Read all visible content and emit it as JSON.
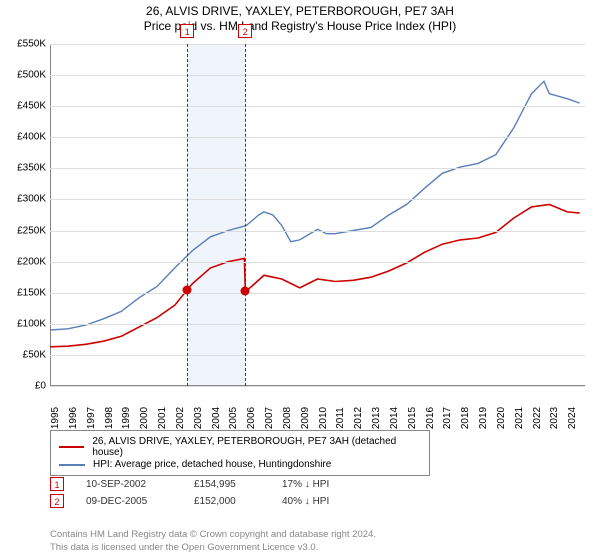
{
  "title_line1": "26, ALVIS DRIVE, YAXLEY, PETERBOROUGH, PE7 3AH",
  "title_line2": "Price paid vs. HM Land Registry's House Price Index (HPI)",
  "chart": {
    "type": "line",
    "background_color": "#ffffff",
    "grid_color": "#dddddd",
    "axis_color": "#888888",
    "highlight_band_color": "#f0f4fb",
    "marker_line_color": "#cc0000",
    "marker_dot_color": "#cc0000",
    "x_years": [
      1995,
      1996,
      1997,
      1998,
      1999,
      2000,
      2001,
      2002,
      2003,
      2004,
      2005,
      2006,
      2007,
      2008,
      2009,
      2010,
      2011,
      2012,
      2013,
      2014,
      2015,
      2016,
      2017,
      2018,
      2019,
      2020,
      2021,
      2022,
      2023,
      2024
    ],
    "x_min": 1995,
    "x_max": 2025,
    "y_min": 0,
    "y_max": 550000,
    "y_ticks": [
      0,
      50000,
      100000,
      150000,
      200000,
      250000,
      300000,
      350000,
      400000,
      450000,
      500000,
      550000
    ],
    "y_tick_labels": [
      "£0",
      "£50K",
      "£100K",
      "£150K",
      "£200K",
      "£250K",
      "£300K",
      "£350K",
      "£400K",
      "£450K",
      "£500K",
      "£550K"
    ],
    "x_label_fontsize": 10,
    "y_label_fontsize": 10,
    "highlight_band": {
      "x_start": 2002.7,
      "x_end": 2005.95
    },
    "series": [
      {
        "name": "property_price",
        "color": "#cc0000",
        "line_width": 1.6,
        "points": [
          [
            1995,
            63000
          ],
          [
            1996,
            64000
          ],
          [
            1997,
            67000
          ],
          [
            1998,
            72000
          ],
          [
            1999,
            80000
          ],
          [
            2000,
            95000
          ],
          [
            2001,
            110000
          ],
          [
            2002,
            130000
          ],
          [
            2002.7,
            155000
          ],
          [
            2003,
            165000
          ],
          [
            2004,
            190000
          ],
          [
            2005,
            200000
          ],
          [
            2005.9,
            205000
          ],
          [
            2005.95,
            152000
          ],
          [
            2006.3,
            160000
          ],
          [
            2007,
            178000
          ],
          [
            2008,
            172000
          ],
          [
            2009,
            158000
          ],
          [
            2010,
            172000
          ],
          [
            2011,
            168000
          ],
          [
            2012,
            170000
          ],
          [
            2013,
            175000
          ],
          [
            2014,
            185000
          ],
          [
            2015,
            198000
          ],
          [
            2016,
            215000
          ],
          [
            2017,
            228000
          ],
          [
            2018,
            235000
          ],
          [
            2019,
            238000
          ],
          [
            2020,
            247000
          ],
          [
            2021,
            270000
          ],
          [
            2022,
            288000
          ],
          [
            2023,
            292000
          ],
          [
            2024,
            280000
          ],
          [
            2024.7,
            278000
          ]
        ]
      },
      {
        "name": "hpi",
        "color": "#5a7fb8",
        "line_width": 1.4,
        "points": [
          [
            1995,
            90000
          ],
          [
            1996,
            92000
          ],
          [
            1997,
            98000
          ],
          [
            1998,
            108000
          ],
          [
            1999,
            120000
          ],
          [
            2000,
            142000
          ],
          [
            2001,
            160000
          ],
          [
            2002,
            190000
          ],
          [
            2003,
            218000
          ],
          [
            2004,
            240000
          ],
          [
            2005,
            250000
          ],
          [
            2006,
            258000
          ],
          [
            2006.7,
            275000
          ],
          [
            2007,
            280000
          ],
          [
            2007.5,
            275000
          ],
          [
            2008,
            258000
          ],
          [
            2008.5,
            232000
          ],
          [
            2009,
            235000
          ],
          [
            2010,
            252000
          ],
          [
            2010.5,
            245000
          ],
          [
            2011,
            245000
          ],
          [
            2012,
            250000
          ],
          [
            2013,
            255000
          ],
          [
            2014,
            275000
          ],
          [
            2015,
            292000
          ],
          [
            2016,
            318000
          ],
          [
            2017,
            342000
          ],
          [
            2018,
            352000
          ],
          [
            2019,
            358000
          ],
          [
            2020,
            372000
          ],
          [
            2021,
            415000
          ],
          [
            2022,
            470000
          ],
          [
            2022.7,
            490000
          ],
          [
            2023,
            470000
          ],
          [
            2024,
            462000
          ],
          [
            2024.7,
            455000
          ]
        ]
      }
    ],
    "sale_markers": [
      {
        "label": "1",
        "x": 2002.7,
        "y": 155000
      },
      {
        "label": "2",
        "x": 2005.95,
        "y": 152000
      }
    ]
  },
  "legend": {
    "border_color": "#888888",
    "items": [
      {
        "color": "#cc0000",
        "label": "26, ALVIS DRIVE, YAXLEY, PETERBOROUGH, PE7 3AH (detached house)"
      },
      {
        "color": "#5a7fb8",
        "label": "HPI: Average price, detached house, Huntingdonshire"
      }
    ]
  },
  "sales": [
    {
      "marker": "1",
      "date": "10-SEP-2002",
      "price": "£154,995",
      "diff_pct": "17%",
      "diff_dir": "↓",
      "diff_vs": "HPI"
    },
    {
      "marker": "2",
      "date": "09-DEC-2005",
      "price": "£152,000",
      "diff_pct": "40%",
      "diff_dir": "↓",
      "diff_vs": "HPI"
    }
  ],
  "footer_line1": "Contains HM Land Registry data © Crown copyright and database right 2024.",
  "footer_line2": "This data is licensed under the Open Government Licence v3.0."
}
